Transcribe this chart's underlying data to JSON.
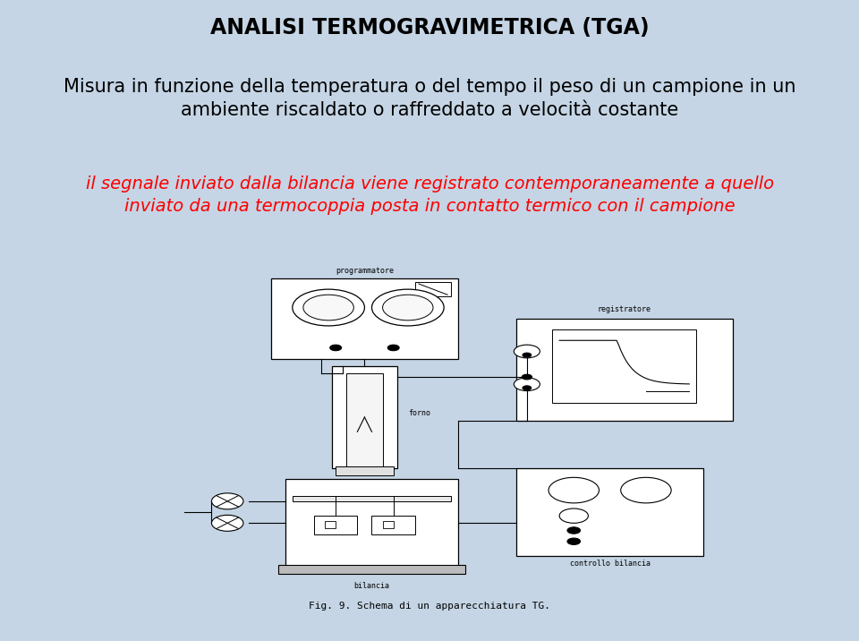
{
  "bg_color": "#c5d5e5",
  "white_bg": "#ffffff",
  "title_line1": "ANALISI TERMOGRAVIMETRICA (TGA)",
  "subtitle": "Misura in funzione della temperatura o del tempo il peso di un campione in un\nambiente riscaldato o raffreddato a velocità costante",
  "red_text": "il segnale inviato dalla bilancia viene registrato contemporaneamente a quello\ninviato da una termocoppia posta in contatto termico con il campione",
  "fig_caption": "Fig. 9. Schema di un apparecchiatura TG.",
  "title_fontsize": 17,
  "subtitle_fontsize": 15,
  "red_fontsize": 14,
  "caption_fontsize": 10
}
